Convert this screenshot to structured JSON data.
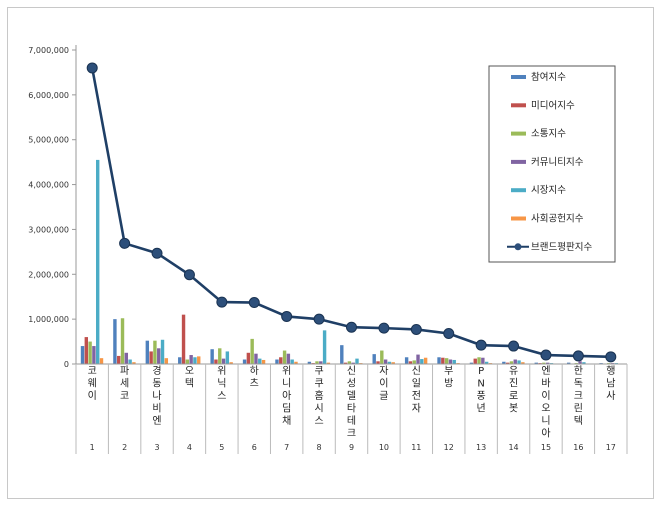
{
  "chart_data": {
    "type": "bar",
    "title": "",
    "xlabel": "",
    "ylabel": "",
    "ylim": [
      0,
      7000000
    ],
    "ytick_step": 1000000,
    "yticks": [
      "0",
      "1,000,000",
      "2,000,000",
      "3,000,000",
      "4,000,000",
      "5,000,000",
      "6,000,000",
      "7,000,000"
    ],
    "categories": [
      "코웨이",
      "파세코",
      "경동나비엔",
      "오텍",
      "위닉스",
      "하츠",
      "위니아딤채",
      "쿠쿠홈시스",
      "신성델타테크",
      "자이글",
      "신일전자",
      "부방",
      "PN풍년",
      "유진로봇",
      "엔바이오니아",
      "한독크린텍",
      "행남사"
    ],
    "ranks": [
      "1",
      "2",
      "3",
      "4",
      "5",
      "6",
      "7",
      "8",
      "9",
      "10",
      "11",
      "12",
      "13",
      "14",
      "15",
      "16",
      "17"
    ],
    "series": [
      {
        "name": "참여지수",
        "color": "#4f81bd",
        "values": [
          400000,
          1000000,
          520000,
          150000,
          330000,
          100000,
          100000,
          50000,
          420000,
          220000,
          150000,
          150000,
          30000,
          50000,
          30000,
          30000,
          20000
        ]
      },
      {
        "name": "미디어지수",
        "color": "#c0504d",
        "values": [
          600000,
          180000,
          280000,
          1100000,
          100000,
          250000,
          150000,
          20000,
          30000,
          60000,
          60000,
          140000,
          120000,
          30000,
          20000,
          10000,
          10000
        ]
      },
      {
        "name": "소통지수",
        "color": "#9bbb59",
        "values": [
          500000,
          1020000,
          520000,
          100000,
          350000,
          560000,
          300000,
          60000,
          60000,
          300000,
          80000,
          130000,
          150000,
          60000,
          30000,
          20000,
          20000
        ]
      },
      {
        "name": "커뮤니티지수",
        "color": "#8064a2",
        "values": [
          400000,
          250000,
          350000,
          200000,
          120000,
          230000,
          230000,
          60000,
          30000,
          100000,
          210000,
          100000,
          140000,
          100000,
          30000,
          60000,
          20000
        ]
      },
      {
        "name": "시장지수",
        "color": "#4bacc6",
        "values": [
          4550000,
          100000,
          540000,
          150000,
          280000,
          120000,
          100000,
          750000,
          120000,
          50000,
          110000,
          90000,
          50000,
          80000,
          20000,
          40000,
          20000
        ]
      },
      {
        "name": "사회공헌지수",
        "color": "#f79646",
        "values": [
          130000,
          40000,
          130000,
          170000,
          40000,
          90000,
          50000,
          30000,
          20000,
          40000,
          140000,
          20000,
          20000,
          40000,
          10000,
          10000,
          10000
        ]
      }
    ],
    "line": {
      "name": "브랜드평판지수",
      "color": "#1f3f66",
      "values": [
        6600000,
        2690000,
        2470000,
        1990000,
        1380000,
        1370000,
        1060000,
        1000000,
        820000,
        800000,
        770000,
        680000,
        420000,
        400000,
        200000,
        180000,
        160000
      ]
    },
    "legend_position": "right"
  }
}
